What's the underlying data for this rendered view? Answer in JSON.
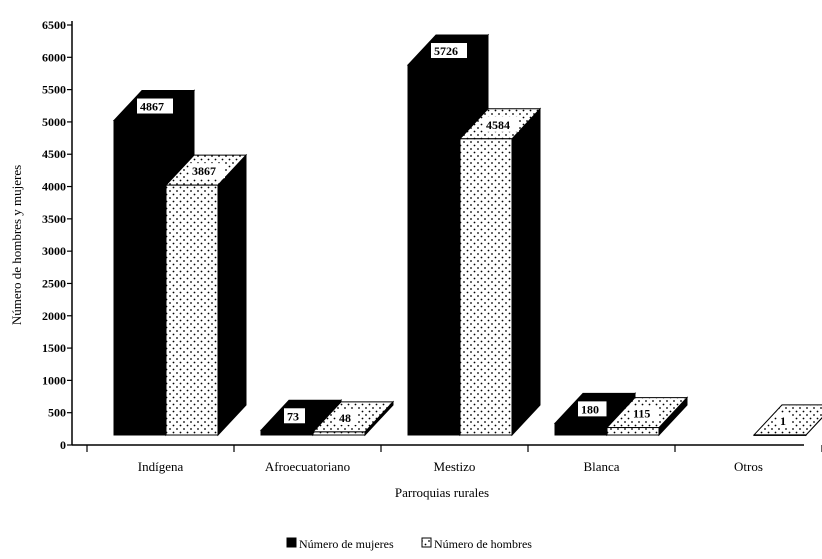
{
  "chart_data": {
    "type": "bar",
    "title": "",
    "xlabel": "Parroquias rurales",
    "ylabel": "Número de hombres y mujeres",
    "categories": [
      "Indígena",
      "Afroecuatoriano",
      "Mestizo",
      "Blanca",
      "Otros"
    ],
    "series": [
      {
        "name": "Número de mujeres",
        "values": [
          4867,
          73,
          5726,
          180,
          0
        ],
        "labels": [
          "4867",
          "73",
          "5726",
          "180",
          ""
        ],
        "color": "#000000"
      },
      {
        "name": "Número de hombres",
        "values": [
          3867,
          48,
          4584,
          115,
          1
        ],
        "labels": [
          "3867",
          "48",
          "4584",
          "115",
          "1"
        ],
        "color": "#ffffff"
      }
    ],
    "ylim": [
      0,
      6500
    ],
    "yticks": [
      "0",
      "500",
      "1000",
      "1500",
      "2000",
      "2500",
      "3000",
      "3500",
      "4000",
      "4500",
      "5000",
      "5500",
      "6000",
      "6500"
    ],
    "legend_position": "bottom",
    "grid": false,
    "style": "3d"
  }
}
